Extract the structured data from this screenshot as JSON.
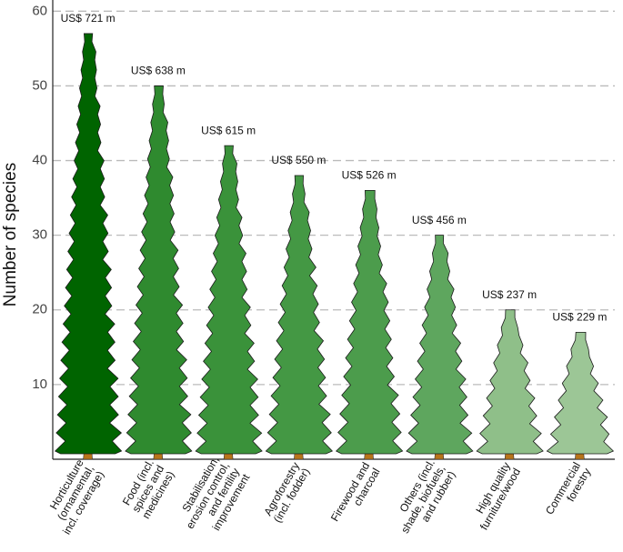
{
  "chart_data": {
    "type": "pictorial-bar",
    "y_label": "Number of species",
    "categories": [
      [
        "Horticulture",
        "(ornamental,",
        "incl. coverage)"
      ],
      [
        "Food (incl.",
        "spices and",
        "medicines)"
      ],
      [
        "Stabilisation,",
        "erosion control,",
        "and fertility",
        "improvement"
      ],
      [
        "Agroforestry",
        "(incl. fodder)"
      ],
      [
        "Firewood and",
        "charcoal"
      ],
      [
        "Others (incl.",
        "shade, biofuels,",
        "and rubber)"
      ],
      [
        "High quality",
        "furniture/wood"
      ],
      [
        "Commercial",
        "forestry"
      ]
    ],
    "values": [
      57,
      50,
      42,
      38,
      36,
      30,
      20,
      17
    ],
    "annotations": [
      "US$ 721 m",
      "US$ 638 m",
      "US$ 615 m",
      "US$ 550 m",
      "US$ 526 m",
      "US$ 456 m",
      "US$ 237 m",
      "US$ 229 m"
    ],
    "colors": [
      "#006400",
      "#2f8a2f",
      "#3a923a",
      "#449844",
      "#4c9c4c",
      "#5ea65e",
      "#8fbf89",
      "#9cc696"
    ],
    "ylim": [
      0,
      61.5
    ],
    "yticks": [
      10,
      20,
      30,
      40,
      50,
      60
    ],
    "grid": true
  }
}
